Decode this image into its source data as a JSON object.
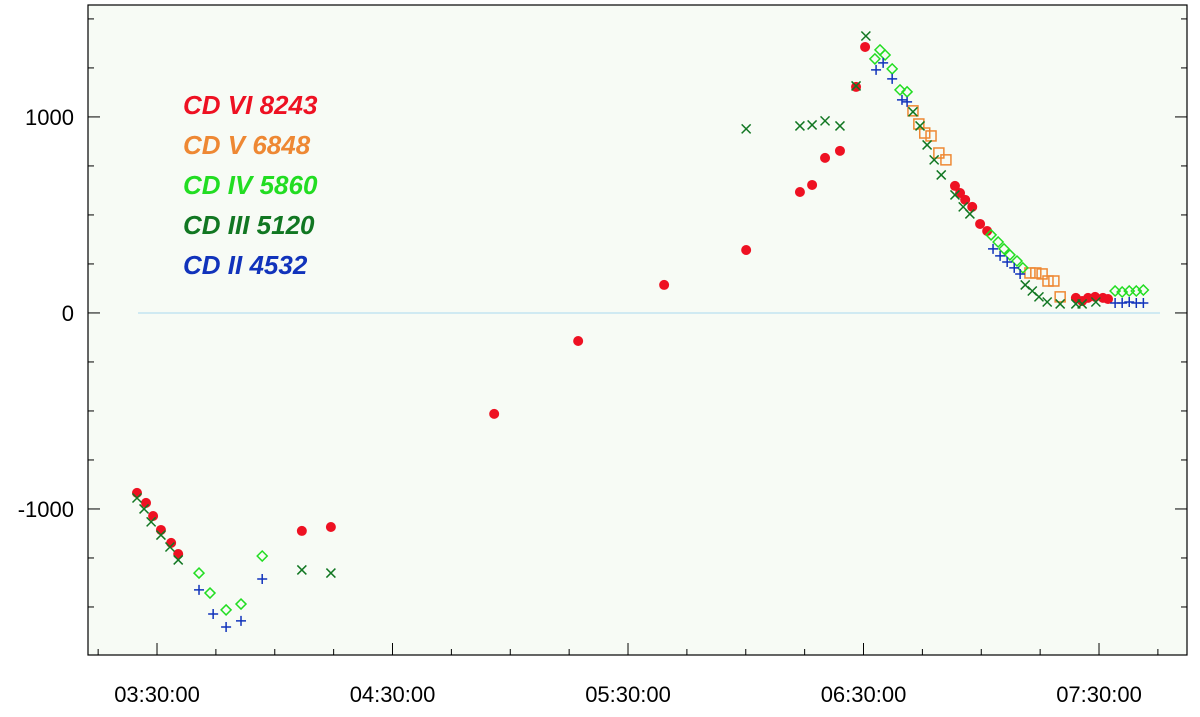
{
  "chart_data": {
    "type": "scatter",
    "xlim": [
      "03:12:25",
      "07:52:25"
    ],
    "ylim": [
      -1745,
      1571
    ],
    "xticks": [
      "03:30:00",
      "04:30:00",
      "05:30:00",
      "06:30:00",
      "07:30:00"
    ],
    "x_minor_ticks": [
      "03:15:00",
      "03:45:00",
      "04:00:00",
      "04:15:00",
      "04:45:00",
      "05:00:00",
      "05:15:00",
      "05:45:00",
      "06:00:00",
      "06:15:00",
      "06:45:00",
      "07:00:00",
      "07:15:00",
      "07:45:00"
    ],
    "yticks": [
      -1000,
      0,
      1000
    ],
    "y_minor_ticks": [
      -1500,
      -1250,
      -750,
      -500,
      -250,
      250,
      500,
      750,
      1250,
      1500
    ],
    "hline": 0,
    "series": [
      {
        "name": "CD VI 8243",
        "color": "#ee1122",
        "marker": "circle",
        "x": [
          "03:24:54",
          "03:27:12",
          "03:29:00",
          "03:31:00",
          "03:33:36",
          "03:35:24",
          "04:06:54",
          "04:14:18",
          "04:55:54",
          "05:17:18",
          "05:39:12",
          "06:00:06",
          "06:13:48",
          "06:16:54",
          "06:20:12",
          "06:24:00",
          "06:28:06",
          "06:30:24",
          "06:53:18",
          "06:54:36",
          "06:55:54",
          "06:57:42",
          "06:59:42",
          "07:01:30",
          "07:24:06",
          "07:25:42",
          "07:27:12",
          "07:29:00",
          "07:31:00",
          "07:32:18"
        ],
        "values": [
          -918,
          -969,
          -1036,
          -1107,
          -1173,
          -1230,
          -1112,
          -1092,
          -515,
          -143,
          143,
          321,
          617,
          653,
          791,
          827,
          1153,
          1357,
          648,
          612,
          577,
          541,
          454,
          418,
          77,
          61,
          77,
          82,
          77,
          71
        ]
      },
      {
        "name": "CD V 6848",
        "color": "#ee8833",
        "marker": "square",
        "x": [
          "06:42:36",
          "06:44:06",
          "06:45:36",
          "06:47:12",
          "06:49:12",
          "06:51:00",
          "07:12:24",
          "07:13:54",
          "07:15:30",
          "07:17:00",
          "07:18:30",
          "07:20:06"
        ],
        "values": [
          1031,
          964,
          918,
          903,
          816,
          781,
          204,
          204,
          199,
          163,
          163,
          82
        ]
      },
      {
        "name": "CD IV 5860",
        "color": "#22dd22",
        "marker": "diamond",
        "x": [
          "03:40:42",
          "03:43:30",
          "03:47:36",
          "03:51:24",
          "03:56:48",
          "06:32:54",
          "06:34:12",
          "06:35:30",
          "06:37:18",
          "06:39:18",
          "06:41:06",
          "07:02:30",
          "07:04:18",
          "07:05:48",
          "07:07:18",
          "07:09:06",
          "07:10:36",
          "07:34:06",
          "07:35:54",
          "07:37:42",
          "07:39:30",
          "07:41:18"
        ],
        "values": [
          -1327,
          -1429,
          -1515,
          -1485,
          -1240,
          1296,
          1342,
          1316,
          1245,
          1138,
          1128,
          398,
          362,
          327,
          296,
          265,
          230,
          112,
          107,
          112,
          112,
          117
        ]
      },
      {
        "name": "CD III 5120",
        "color": "#117722",
        "marker": "x",
        "x": [
          "03:24:54",
          "03:26:42",
          "03:28:30",
          "03:31:00",
          "03:33:18",
          "03:35:24",
          "04:06:54",
          "04:14:18",
          "06:00:06",
          "06:13:48",
          "06:16:54",
          "06:20:12",
          "06:24:00",
          "06:28:06",
          "06:30:36",
          "06:42:36",
          "06:44:24",
          "06:46:12",
          "06:48:00",
          "06:49:48",
          "06:53:18",
          "06:55:24",
          "06:57:06",
          "07:11:12",
          "07:13:00",
          "07:14:42",
          "07:16:48",
          "07:20:06",
          "07:24:06",
          "07:25:42",
          "07:29:12"
        ],
        "values": [
          -944,
          -1000,
          -1066,
          -1133,
          -1194,
          -1260,
          -1311,
          -1327,
          939,
          954,
          959,
          980,
          954,
          1158,
          1413,
          1026,
          954,
          857,
          781,
          704,
          602,
          541,
          505,
          143,
          112,
          82,
          56,
          46,
          46,
          46,
          56
        ]
      },
      {
        "name": "CD II 4532",
        "color": "#1133bb",
        "marker": "plus",
        "x": [
          "03:40:42",
          "03:44:18",
          "03:47:36",
          "03:51:24",
          "03:56:48",
          "06:33:12",
          "06:35:00",
          "06:37:18",
          "06:39:48",
          "06:41:06",
          "07:03:00",
          "07:04:48",
          "07:06:36",
          "07:08:24",
          "07:09:54",
          "07:34:06",
          "07:35:54",
          "07:37:42",
          "07:39:30",
          "07:41:18"
        ],
        "values": [
          -1413,
          -1536,
          -1602,
          -1571,
          -1357,
          1240,
          1276,
          1194,
          1087,
          1077,
          327,
          291,
          260,
          230,
          199,
          51,
          51,
          56,
          51,
          51
        ]
      }
    ]
  }
}
